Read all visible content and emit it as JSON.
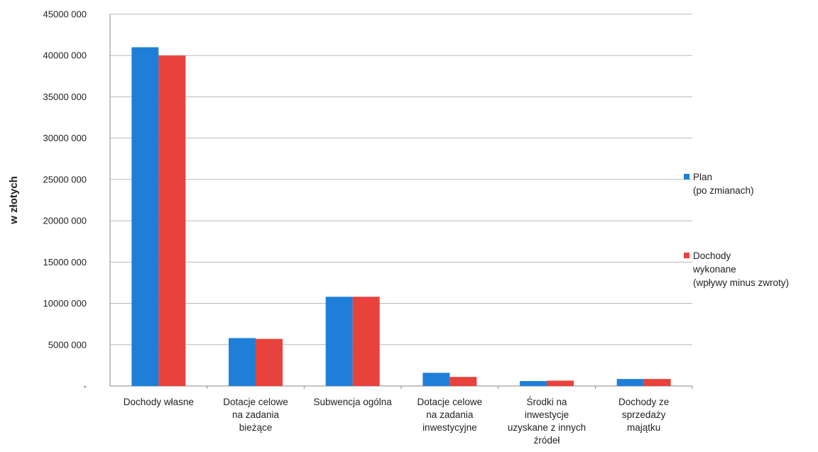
{
  "chart_data": {
    "type": "bar",
    "ylabel": "w złotych",
    "ylim": [
      0,
      45000000
    ],
    "yticks": [
      {
        "value": 0,
        "label": "-"
      },
      {
        "value": 5000000,
        "label": "5000 000"
      },
      {
        "value": 10000000,
        "label": "10000 000"
      },
      {
        "value": 15000000,
        "label": "15000 000"
      },
      {
        "value": 20000000,
        "label": "20000 000"
      },
      {
        "value": 25000000,
        "label": "25000 000"
      },
      {
        "value": 30000000,
        "label": "30000 000"
      },
      {
        "value": 35000000,
        "label": "35000 000"
      },
      {
        "value": 40000000,
        "label": "40000 000"
      },
      {
        "value": 45000000,
        "label": "45000 000"
      }
    ],
    "grid": true,
    "legend_position": "right",
    "categories": [
      [
        "Dochody własne"
      ],
      [
        "Dotacje celowe",
        "na zadania",
        "bieżące"
      ],
      [
        "Subwencja ogólna"
      ],
      [
        "Dotacje celowe",
        "na zadania",
        "inwestycyjne"
      ],
      [
        "Środki na",
        "inwestycje",
        "uzyskane z innych",
        "źródeł"
      ],
      [
        "Dochody ze",
        "sprzedaży",
        "majątku"
      ]
    ],
    "series": [
      {
        "name": [
          "Plan",
          "(po zmianach)"
        ],
        "color": "#1F7FD8",
        "values": [
          41000000,
          5800000,
          10800000,
          1600000,
          600000,
          850000
        ]
      },
      {
        "name": [
          "Dochody",
          "wykonane",
          "(wpływy minus zwroty)"
        ],
        "color": "#E8423C",
        "values": [
          40000000,
          5700000,
          10800000,
          1100000,
          650000,
          850000
        ]
      }
    ]
  }
}
